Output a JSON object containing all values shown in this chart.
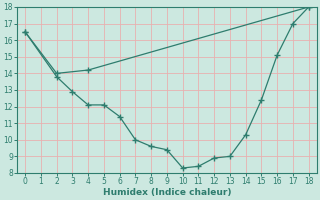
{
  "xlabel": "Humidex (Indice chaleur)",
  "color": "#2e7d6e",
  "bg_color": "#cce8e0",
  "grid_color": "#e8b0b0",
  "xlim": [
    -0.5,
    18.5
  ],
  "ylim": [
    8,
    18
  ],
  "xticks": [
    0,
    1,
    2,
    3,
    4,
    5,
    6,
    7,
    8,
    9,
    10,
    11,
    12,
    13,
    14,
    15,
    16,
    17,
    18
  ],
  "yticks": [
    8,
    9,
    10,
    11,
    12,
    13,
    14,
    15,
    16,
    17,
    18
  ],
  "line1_x": [
    0,
    2,
    3,
    4,
    5,
    6,
    7,
    8,
    9,
    10,
    11,
    12,
    13,
    14,
    15,
    16,
    17,
    18
  ],
  "line1_y": [
    16.5,
    13.8,
    12.9,
    12.1,
    12.1,
    11.4,
    10.0,
    9.6,
    9.4,
    8.3,
    8.4,
    8.9,
    9.0,
    10.3,
    12.4,
    15.1,
    17.0,
    18.0
  ],
  "line2_x": [
    0,
    2,
    4,
    18
  ],
  "line2_y": [
    16.5,
    14.0,
    14.2,
    18.0
  ]
}
